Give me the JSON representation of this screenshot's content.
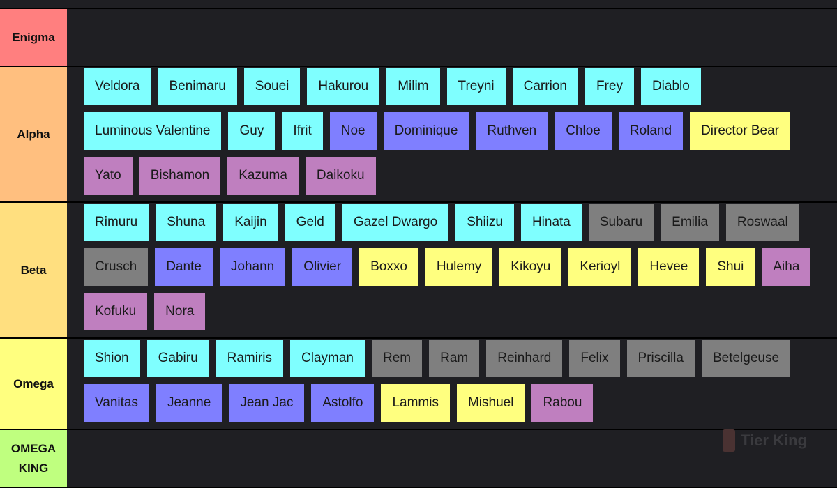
{
  "tiers": [
    {
      "label": "Enigma",
      "color": "#ff7f7f",
      "rows": []
    },
    {
      "label": "Alpha",
      "color": "#ffbf7f",
      "rows": [
        [
          {
            "name": "Veldora",
            "color": "#7fffff"
          },
          {
            "name": "Benimaru",
            "color": "#7fffff"
          },
          {
            "name": "Souei",
            "color": "#7fffff"
          },
          {
            "name": "Hakurou",
            "color": "#7fffff"
          },
          {
            "name": "Milim",
            "color": "#7fffff"
          },
          {
            "name": "Treyni",
            "color": "#7fffff"
          },
          {
            "name": "Carrion",
            "color": "#7fffff"
          },
          {
            "name": "Frey",
            "color": "#7fffff"
          },
          {
            "name": "Diablo",
            "color": "#7fffff"
          }
        ],
        [
          {
            "name": "Luminous Valentine",
            "color": "#7fffff"
          },
          {
            "name": "Guy",
            "color": "#7fffff"
          },
          {
            "name": "Ifrit",
            "color": "#7fffff"
          },
          {
            "name": "Noe",
            "color": "#7f7fff"
          },
          {
            "name": "Dominique",
            "color": "#7f7fff"
          },
          {
            "name": "Ruthven",
            "color": "#7f7fff"
          },
          {
            "name": "Chloe",
            "color": "#7f7fff"
          },
          {
            "name": "Roland",
            "color": "#7f7fff"
          },
          {
            "name": "Director Bear",
            "color": "#ffff7f"
          }
        ],
        [
          {
            "name": "Yato",
            "color": "#bf7fbf"
          },
          {
            "name": "Bishamon",
            "color": "#bf7fbf"
          },
          {
            "name": "Kazuma",
            "color": "#bf7fbf"
          },
          {
            "name": "Daikoku",
            "color": "#bf7fbf"
          }
        ]
      ]
    },
    {
      "label": "Beta",
      "color": "#ffdf7f",
      "rows": [
        [
          {
            "name": "Rimuru",
            "color": "#7fffff"
          },
          {
            "name": "Shuna",
            "color": "#7fffff"
          },
          {
            "name": "Kaijin",
            "color": "#7fffff"
          },
          {
            "name": "Geld",
            "color": "#7fffff"
          },
          {
            "name": "Gazel Dwargo",
            "color": "#7fffff"
          },
          {
            "name": "Shiizu",
            "color": "#7fffff"
          },
          {
            "name": "Hinata",
            "color": "#7fffff"
          },
          {
            "name": "Subaru",
            "color": "#7f7f7f"
          },
          {
            "name": "Emilia",
            "color": "#7f7f7f"
          },
          {
            "name": "Roswaal",
            "color": "#7f7f7f"
          }
        ],
        [
          {
            "name": "Crusch",
            "color": "#7f7f7f"
          },
          {
            "name": "Dante",
            "color": "#7f7fff"
          },
          {
            "name": "Johann",
            "color": "#7f7fff"
          },
          {
            "name": "Olivier",
            "color": "#7f7fff"
          },
          {
            "name": "Boxxo",
            "color": "#ffff7f"
          },
          {
            "name": "Hulemy",
            "color": "#ffff7f"
          },
          {
            "name": "Kikoyu",
            "color": "#ffff7f"
          },
          {
            "name": "Kerioyl",
            "color": "#ffff7f"
          },
          {
            "name": "Hevee",
            "color": "#ffff7f"
          },
          {
            "name": "Shui",
            "color": "#ffff7f"
          },
          {
            "name": "Aiha",
            "color": "#bf7fbf"
          }
        ],
        [
          {
            "name": "Kofuku",
            "color": "#bf7fbf"
          },
          {
            "name": "Nora",
            "color": "#bf7fbf"
          }
        ]
      ]
    },
    {
      "label": "Omega",
      "color": "#ffff7f",
      "rows": [
        [
          {
            "name": "Shion",
            "color": "#7fffff"
          },
          {
            "name": "Gabiru",
            "color": "#7fffff"
          },
          {
            "name": "Ramiris",
            "color": "#7fffff"
          },
          {
            "name": "Clayman",
            "color": "#7fffff"
          },
          {
            "name": "Rem",
            "color": "#7f7f7f"
          },
          {
            "name": "Ram",
            "color": "#7f7f7f"
          },
          {
            "name": "Reinhard",
            "color": "#7f7f7f"
          },
          {
            "name": "Felix",
            "color": "#7f7f7f"
          },
          {
            "name": "Priscilla",
            "color": "#7f7f7f"
          },
          {
            "name": "Betelgeuse",
            "color": "#7f7f7f"
          }
        ],
        [
          {
            "name": "Vanitas",
            "color": "#7f7fff"
          },
          {
            "name": "Jeanne",
            "color": "#7f7fff"
          },
          {
            "name": "Jean Jac",
            "color": "#7f7fff"
          },
          {
            "name": "Astolfo",
            "color": "#7f7fff"
          },
          {
            "name": "Lammis",
            "color": "#ffff7f"
          },
          {
            "name": "Mishuel",
            "color": "#ffff7f"
          },
          {
            "name": "Rabou",
            "color": "#bf7fbf"
          }
        ]
      ]
    },
    {
      "label": "OMEGA KING",
      "color": "#bfff7f",
      "rows": []
    }
  ],
  "watermark": "Tier King"
}
